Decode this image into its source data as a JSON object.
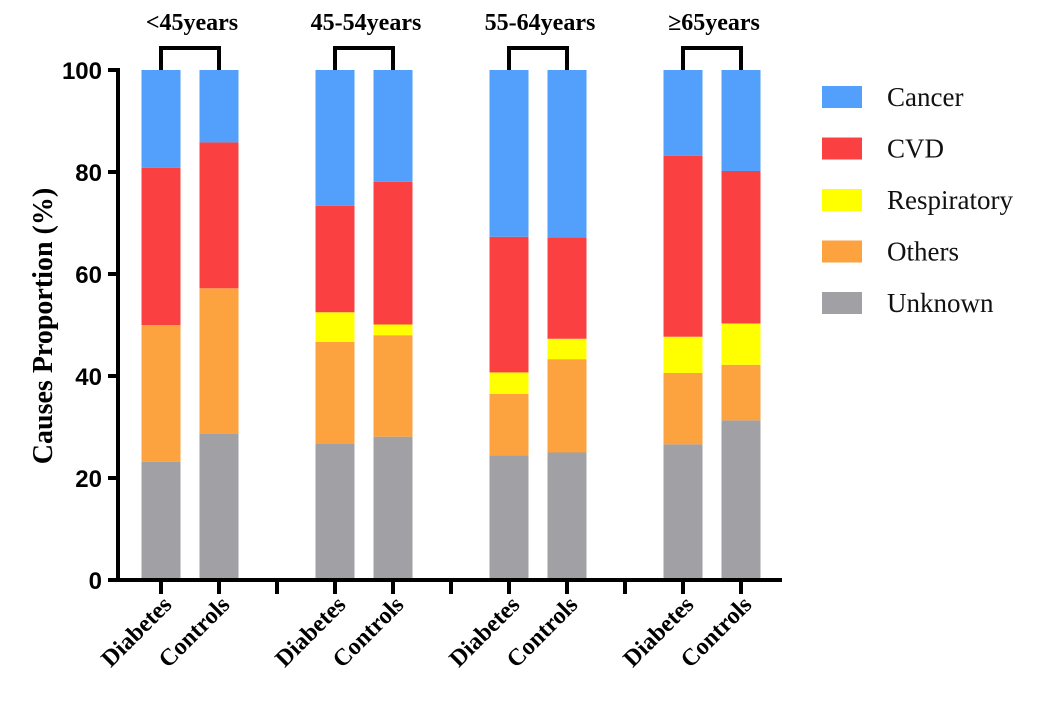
{
  "chart_data": {
    "type": "bar",
    "stacked": true,
    "ylabel": "Causes Proportion (%)",
    "xlabel": "",
    "ylim": [
      0,
      100
    ],
    "yticks": [
      0,
      20,
      40,
      60,
      80,
      100
    ],
    "grid": false,
    "legend_position": "right",
    "groups": [
      {
        "label": "<45years",
        "categories": [
          "Diabetes",
          "Controls"
        ]
      },
      {
        "label": "45-54years",
        "categories": [
          "Diabetes",
          "Controls"
        ]
      },
      {
        "label": "55-64years",
        "categories": [
          "Diabetes",
          "Controls"
        ]
      },
      {
        "label": "≥65years",
        "categories": [
          "Diabetes",
          "Controls"
        ]
      }
    ],
    "series": [
      {
        "name": "Unknown",
        "color": "#a0a0a5",
        "values": [
          23.2,
          28.7,
          26.8,
          28.1,
          24.4,
          25.0,
          26.6,
          31.3
        ]
      },
      {
        "name": "Others",
        "color": "#fca23f",
        "values": [
          26.8,
          28.5,
          19.9,
          19.9,
          12.1,
          18.3,
          14.0,
          10.9
        ]
      },
      {
        "name": "Respiratory",
        "color": "#ffff00",
        "values": [
          0,
          0,
          5.8,
          2.1,
          4.2,
          4.0,
          7.1,
          8.1
        ]
      },
      {
        "name": "CVD",
        "color": "#fb4042",
        "values": [
          30.8,
          28.6,
          20.9,
          28.0,
          26.6,
          19.9,
          35.5,
          29.9
        ]
      },
      {
        "name": "Cancer",
        "color": "#52a0fc",
        "values": [
          19.2,
          14.2,
          26.6,
          21.9,
          32.7,
          32.8,
          16.8,
          19.8
        ]
      }
    ],
    "legend_order": [
      "Cancer",
      "CVD",
      "Respiratory",
      "Others",
      "Unknown"
    ]
  }
}
